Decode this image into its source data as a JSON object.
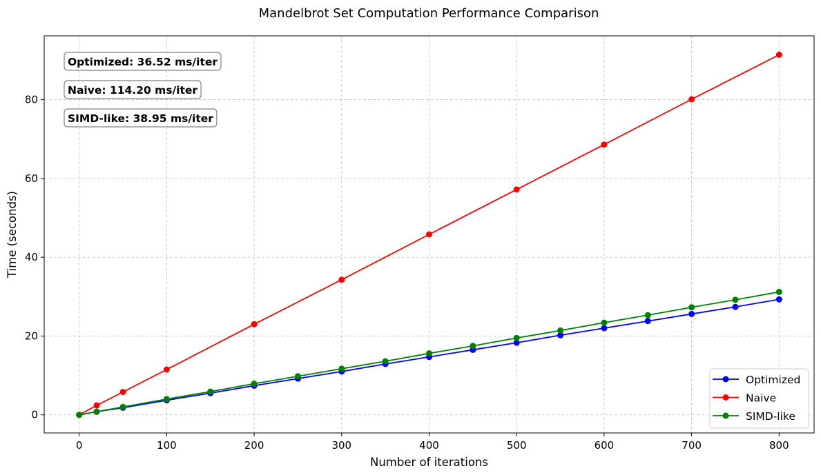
{
  "chart_data": {
    "type": "line",
    "title": "Mandelbrot Set Computation Performance Comparison",
    "xlabel": "Number of iterations",
    "ylabel": "Time (seconds)",
    "xlim": [
      -40,
      840
    ],
    "ylim": [
      -4.6,
      96.2
    ],
    "xticks": [
      0,
      100,
      200,
      300,
      400,
      500,
      600,
      700,
      800
    ],
    "yticks": [
      0,
      20,
      40,
      60,
      80
    ],
    "grid": true,
    "legend_position": "lower-right",
    "series": [
      {
        "name": "Optimized",
        "color": "#0000ff",
        "x": [
          0,
          20,
          50,
          100,
          150,
          200,
          250,
          300,
          350,
          400,
          450,
          500,
          550,
          600,
          650,
          700,
          750,
          800
        ],
        "y": [
          0.0,
          0.8,
          1.8,
          3.7,
          5.5,
          7.4,
          9.2,
          11.0,
          12.9,
          14.7,
          16.5,
          18.3,
          20.2,
          22.0,
          23.8,
          25.6,
          27.4,
          29.3
        ]
      },
      {
        "name": "Naive",
        "color": "#ff0000",
        "x": [
          0,
          20,
          50,
          100,
          200,
          300,
          400,
          500,
          600,
          700,
          800
        ],
        "y": [
          0.0,
          2.4,
          5.8,
          11.5,
          23.0,
          34.3,
          45.8,
          57.2,
          68.6,
          80.1,
          91.4
        ]
      },
      {
        "name": "SIMD-like",
        "color": "#008000",
        "x": [
          0,
          20,
          50,
          100,
          150,
          200,
          250,
          300,
          350,
          400,
          450,
          500,
          550,
          600,
          650,
          700,
          750,
          800
        ],
        "y": [
          0.0,
          0.8,
          2.0,
          4.0,
          5.9,
          7.9,
          9.8,
          11.7,
          13.6,
          15.6,
          17.5,
          19.5,
          21.4,
          23.4,
          25.3,
          27.3,
          29.2,
          31.2
        ]
      }
    ],
    "annotations": [
      "Optimized: 36.52 ms/iter",
      "Naive: 114.20 ms/iter",
      "SIMD-like: 38.95 ms/iter"
    ]
  }
}
